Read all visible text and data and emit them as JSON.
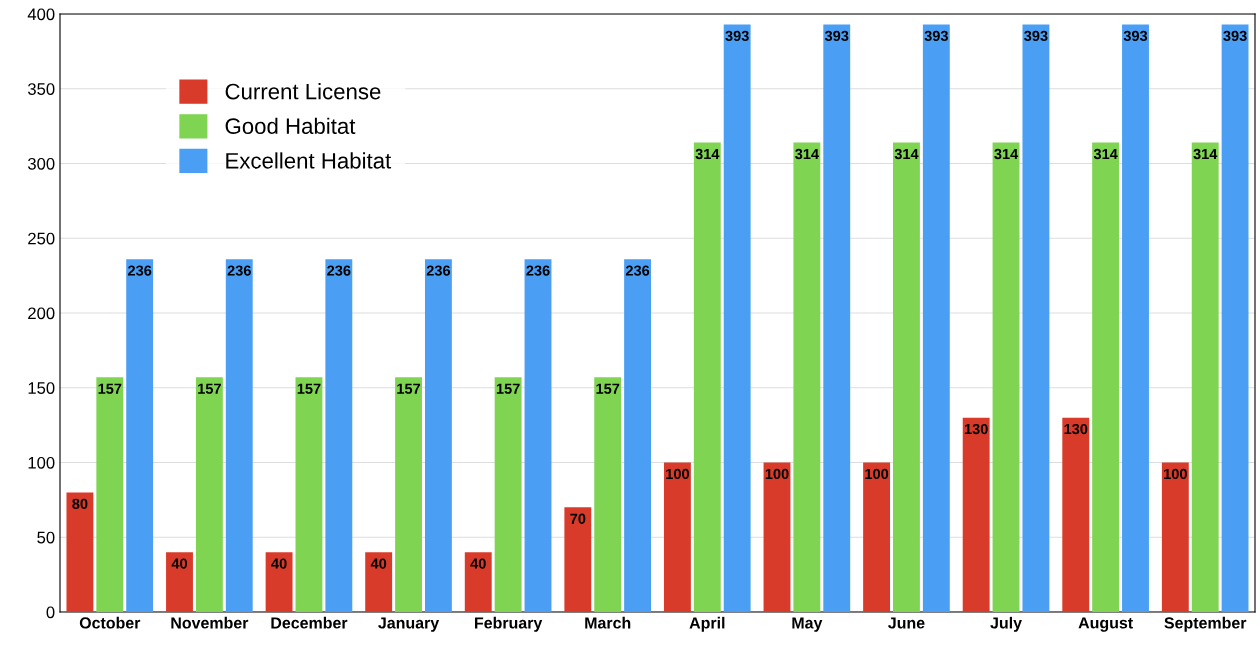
{
  "chart_data": {
    "type": "bar",
    "categories": [
      "October",
      "November",
      "December",
      "January",
      "February",
      "March",
      "April",
      "May",
      "June",
      "July",
      "August",
      "September"
    ],
    "series": [
      {
        "name": "Current License",
        "color": "#d93b2b",
        "values": [
          80,
          40,
          40,
          40,
          40,
          70,
          100,
          100,
          100,
          130,
          130,
          100
        ]
      },
      {
        "name": "Good Habitat",
        "color": "#7fd452",
        "values": [
          157,
          157,
          157,
          157,
          157,
          157,
          314,
          314,
          314,
          314,
          314,
          314
        ]
      },
      {
        "name": "Excellent Habitat",
        "color": "#4a9ff5",
        "values": [
          236,
          236,
          236,
          236,
          236,
          236,
          393,
          393,
          393,
          393,
          393,
          393
        ]
      }
    ],
    "ylim": [
      0,
      400
    ],
    "yticks": [
      0,
      50,
      100,
      150,
      200,
      250,
      300,
      350,
      400
    ],
    "grid": "y",
    "legend": "top left",
    "data_labels": true
  }
}
